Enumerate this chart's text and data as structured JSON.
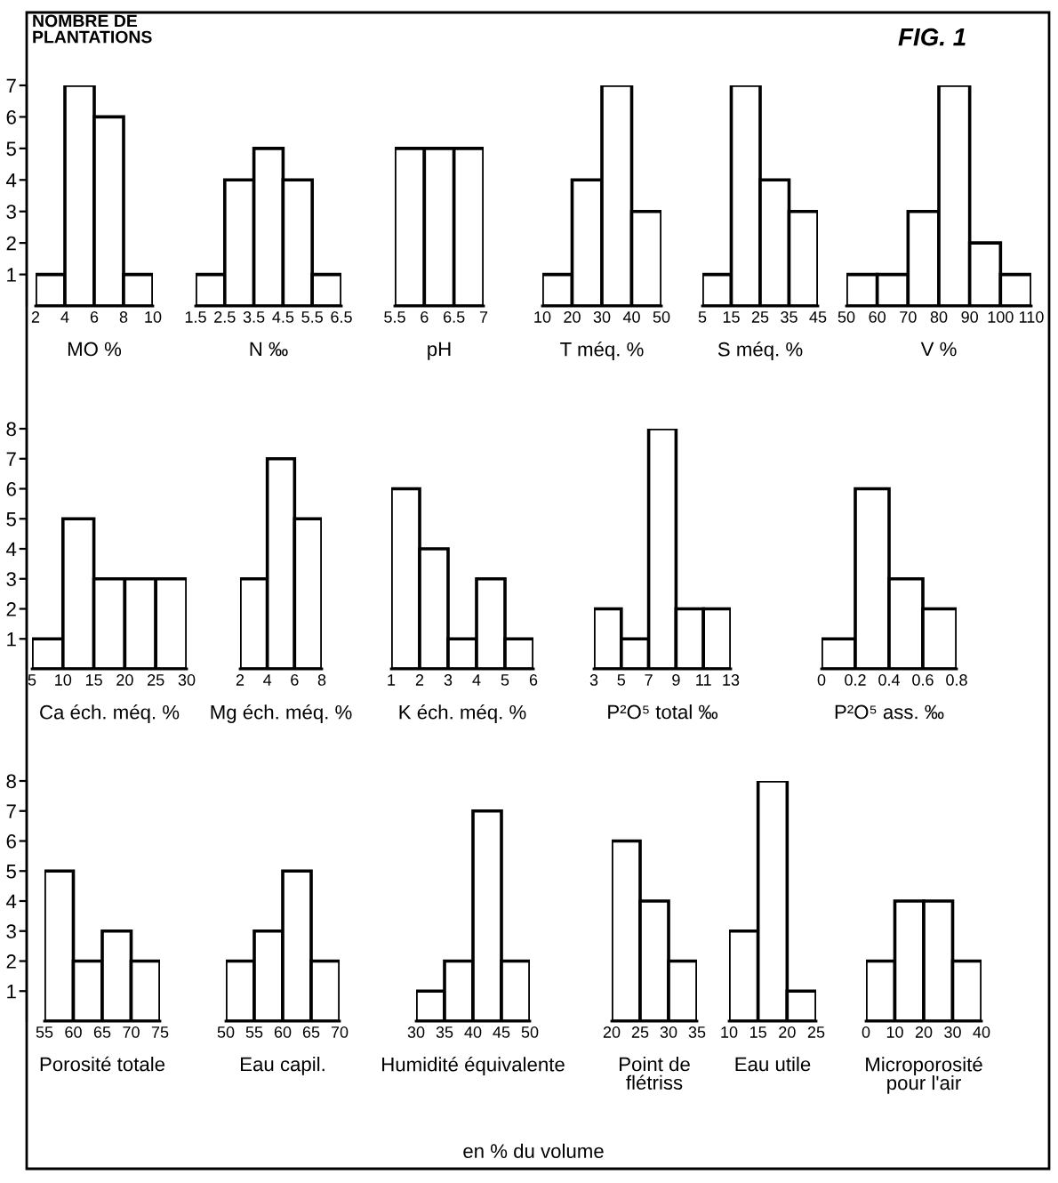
{
  "chart_data": [
    {
      "type": "histogram",
      "ylabel": "NOMBRE DE\nPLANTATIONS",
      "annotations": [
        "FIG. 1"
      ],
      "xlabel": "MO %",
      "bins": [
        2,
        4,
        6,
        8,
        10
      ],
      "values": [
        1,
        7,
        6,
        1
      ],
      "color": "#ffffff",
      "xlim": [
        2,
        10
      ],
      "xticks": [
        2,
        4,
        6,
        8,
        10
      ],
      "ylim": [
        0,
        7
      ],
      "yticks": [
        1,
        2,
        3,
        4,
        5,
        6,
        7
      ]
    },
    {
      "type": "histogram",
      "xlabel": "N ‰",
      "bins": [
        1.5,
        2.5,
        3.5,
        4.5,
        5.5,
        6.5
      ],
      "values": [
        1,
        4,
        5,
        4,
        1
      ],
      "color": "#ffffff",
      "xlim": [
        1.5,
        6.5
      ],
      "xticks": [
        1.5,
        2.5,
        3.5,
        4.5,
        5.5,
        6.5
      ],
      "ylim": [
        0,
        7
      ],
      "tick_labels": "x"
    },
    {
      "type": "histogram",
      "xlabel": "pH",
      "bins": [
        5.5,
        6,
        6.5,
        7
      ],
      "values": [
        5,
        5,
        5
      ],
      "color": "#ffffff",
      "xlim": [
        5.5,
        7
      ],
      "xticks": [
        5.5,
        6,
        6.5,
        7
      ],
      "ylim": [
        0,
        7
      ],
      "tick_labels": "x"
    },
    {
      "type": "histogram",
      "xlabel": "T méq. %",
      "bins": [
        10,
        20,
        30,
        40,
        50
      ],
      "values": [
        1,
        4,
        7,
        3
      ],
      "color": "#ffffff",
      "xlim": [
        10,
        50
      ],
      "xticks": [
        10,
        20,
        30,
        40,
        50
      ],
      "ylim": [
        0,
        7
      ],
      "tick_labels": "x"
    },
    {
      "type": "histogram",
      "xlabel": "S méq. %",
      "bins": [
        5,
        15,
        25,
        35,
        45
      ],
      "values": [
        1,
        7,
        4,
        3
      ],
      "color": "#ffffff",
      "xlim": [
        5,
        45
      ],
      "xticks": [
        5,
        15,
        25,
        35,
        45
      ],
      "ylim": [
        0,
        7
      ],
      "tick_labels": "x"
    },
    {
      "type": "histogram",
      "xlabel": "V %",
      "bins": [
        50,
        60,
        70,
        80,
        90,
        100,
        110
      ],
      "values": [
        1,
        1,
        3,
        7,
        2,
        1
      ],
      "color": "#ffffff",
      "xlim": [
        50,
        110
      ],
      "xticks": [
        50,
        60,
        70,
        80,
        90,
        100,
        110
      ],
      "ylim": [
        0,
        7
      ],
      "tick_labels": "x"
    },
    {
      "type": "histogram",
      "xlabel": "Ca éch. méq. %",
      "bins": [
        5,
        10,
        15,
        20,
        25,
        30
      ],
      "values": [
        1,
        5,
        3,
        3,
        3
      ],
      "color": "#ffffff",
      "xlim": [
        5,
        30
      ],
      "xticks": [
        5,
        10,
        15,
        20,
        25,
        30
      ],
      "ylim": [
        0,
        8
      ],
      "yticks": [
        1,
        2,
        3,
        4,
        5,
        6,
        7,
        8
      ]
    },
    {
      "type": "histogram",
      "xlabel": "Mg éch. méq. %",
      "bins": [
        2,
        4,
        6,
        8
      ],
      "values": [
        3,
        7,
        5
      ],
      "color": "#ffffff",
      "xlim": [
        2,
        8
      ],
      "xticks": [
        2,
        4,
        6,
        8
      ],
      "ylim": [
        0,
        8
      ],
      "tick_labels": "x"
    },
    {
      "type": "histogram",
      "xlabel": "K éch. méq. %",
      "bins": [
        1,
        2,
        3,
        4,
        5,
        6
      ],
      "values": [
        6,
        4,
        1,
        3,
        1
      ],
      "color": "#ffffff",
      "xlim": [
        1,
        6
      ],
      "xticks": [
        1,
        2,
        3,
        4,
        5,
        6
      ],
      "ylim": [
        0,
        8
      ],
      "tick_labels": "x"
    },
    {
      "type": "histogram",
      "xlabel": "P²O⁵ total ‰",
      "bins": [
        3,
        5,
        7,
        9,
        11,
        13
      ],
      "values": [
        2,
        1,
        8,
        2,
        2
      ],
      "color": "#ffffff",
      "xlim": [
        3,
        13
      ],
      "xticks": [
        3,
        5,
        7,
        9,
        11,
        13
      ],
      "ylim": [
        0,
        8
      ],
      "tick_labels": "x"
    },
    {
      "type": "histogram",
      "xlabel": "P²O⁵ ass. ‰",
      "bins": [
        0,
        0.2,
        0.4,
        0.6,
        0.8
      ],
      "values": [
        1,
        6,
        3,
        2
      ],
      "color": "#ffffff",
      "xlim": [
        0,
        0.8
      ],
      "xticks": [
        0,
        0.2,
        0.4,
        0.6,
        0.8
      ],
      "ylim": [
        0,
        8
      ],
      "tick_labels": "x"
    },
    {
      "type": "histogram",
      "xlabel": "Porosité totale",
      "bins": [
        55,
        60,
        65,
        70,
        75
      ],
      "values": [
        5,
        2,
        3,
        2
      ],
      "color": "#ffffff",
      "xlim": [
        55,
        75
      ],
      "xticks": [
        55,
        60,
        65,
        70,
        75
      ],
      "ylim": [
        0,
        8
      ],
      "yticks": [
        1,
        2,
        3,
        4,
        5,
        6,
        7,
        8
      ]
    },
    {
      "type": "histogram",
      "xlabel": "Eau capil.",
      "bins": [
        50,
        55,
        60,
        65,
        70
      ],
      "values": [
        2,
        3,
        5,
        2
      ],
      "color": "#ffffff",
      "xlim": [
        50,
        70
      ],
      "xticks": [
        50,
        55,
        60,
        65,
        70
      ],
      "ylim": [
        0,
        8
      ],
      "tick_labels": "x"
    },
    {
      "type": "histogram",
      "xlabel": "Humidité équivalente",
      "annotations": [
        "en % du volume"
      ],
      "bins": [
        30,
        35,
        40,
        45,
        50
      ],
      "values": [
        1,
        2,
        7,
        2
      ],
      "color": "#ffffff",
      "xlim": [
        30,
        50
      ],
      "xticks": [
        30,
        35,
        40,
        45,
        50
      ],
      "ylim": [
        0,
        8
      ],
      "tick_labels": "x"
    },
    {
      "type": "histogram",
      "xlabel": "Point de\nflétriss",
      "bins": [
        20,
        25,
        30,
        35
      ],
      "values": [
        6,
        4,
        2
      ],
      "color": "#ffffff",
      "xlim": [
        20,
        35
      ],
      "xticks": [
        20,
        25,
        30,
        35
      ],
      "ylim": [
        0,
        8
      ],
      "tick_labels": "x"
    },
    {
      "type": "histogram",
      "xlabel": "Eau utile",
      "bins": [
        10,
        15,
        20,
        25
      ],
      "values": [
        3,
        8,
        1
      ],
      "color": "#ffffff",
      "xlim": [
        10,
        25
      ],
      "xticks": [
        10,
        15,
        20,
        25
      ],
      "ylim": [
        0,
        8
      ],
      "tick_labels": "x"
    },
    {
      "type": "histogram",
      "xlabel": "Microporosité\npour l'air",
      "bins": [
        0,
        10,
        20,
        30,
        40
      ],
      "values": [
        2,
        4,
        4,
        2
      ],
      "color": "#ffffff",
      "xlim": [
        0,
        40
      ],
      "xticks": [
        0,
        10,
        20,
        30,
        40
      ],
      "ylim": [
        0,
        8
      ],
      "tick_labels": "x"
    }
  ]
}
